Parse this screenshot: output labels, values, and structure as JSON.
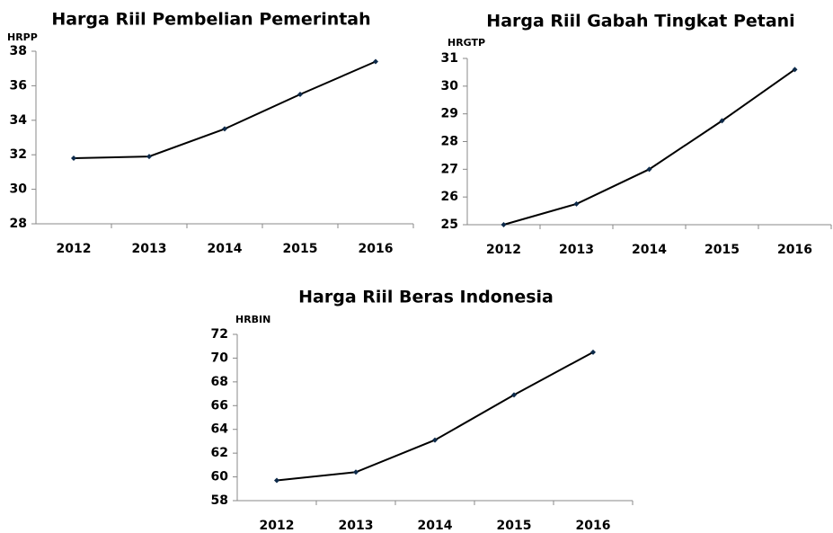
{
  "chart_data": [
    {
      "type": "line",
      "title": "Harga Riil Pembelian Pemerintah",
      "y_label": "HRPP",
      "categories": [
        "2012",
        "2013",
        "2014",
        "2015",
        "2016"
      ],
      "values": [
        31.8,
        31.9,
        33.5,
        35.5,
        37.4
      ],
      "color": "#000000",
      "ylim": [
        28,
        38
      ],
      "yticks": [
        28,
        30,
        32,
        34,
        36,
        38
      ]
    },
    {
      "type": "line",
      "title": "Harga Riil Gabah Tingkat Petani",
      "y_label": "HRGTP",
      "categories": [
        "2012",
        "2013",
        "2014",
        "2015",
        "2016"
      ],
      "values": [
        25.0,
        25.75,
        27.0,
        28.75,
        30.6
      ],
      "color": "#000000",
      "ylim": [
        25,
        31
      ],
      "yticks": [
        25,
        26,
        27,
        28,
        29,
        30,
        31
      ]
    },
    {
      "type": "line",
      "title": "Harga Riil Beras Indonesia",
      "y_label": "HRBIN",
      "categories": [
        "2012",
        "2013",
        "2014",
        "2015",
        "2016"
      ],
      "values": [
        59.7,
        60.4,
        63.1,
        66.9,
        70.5
      ],
      "color": "#000000",
      "ylim": [
        58,
        72
      ],
      "yticks": [
        58,
        60,
        62,
        64,
        66,
        68,
        70,
        72
      ]
    }
  ]
}
